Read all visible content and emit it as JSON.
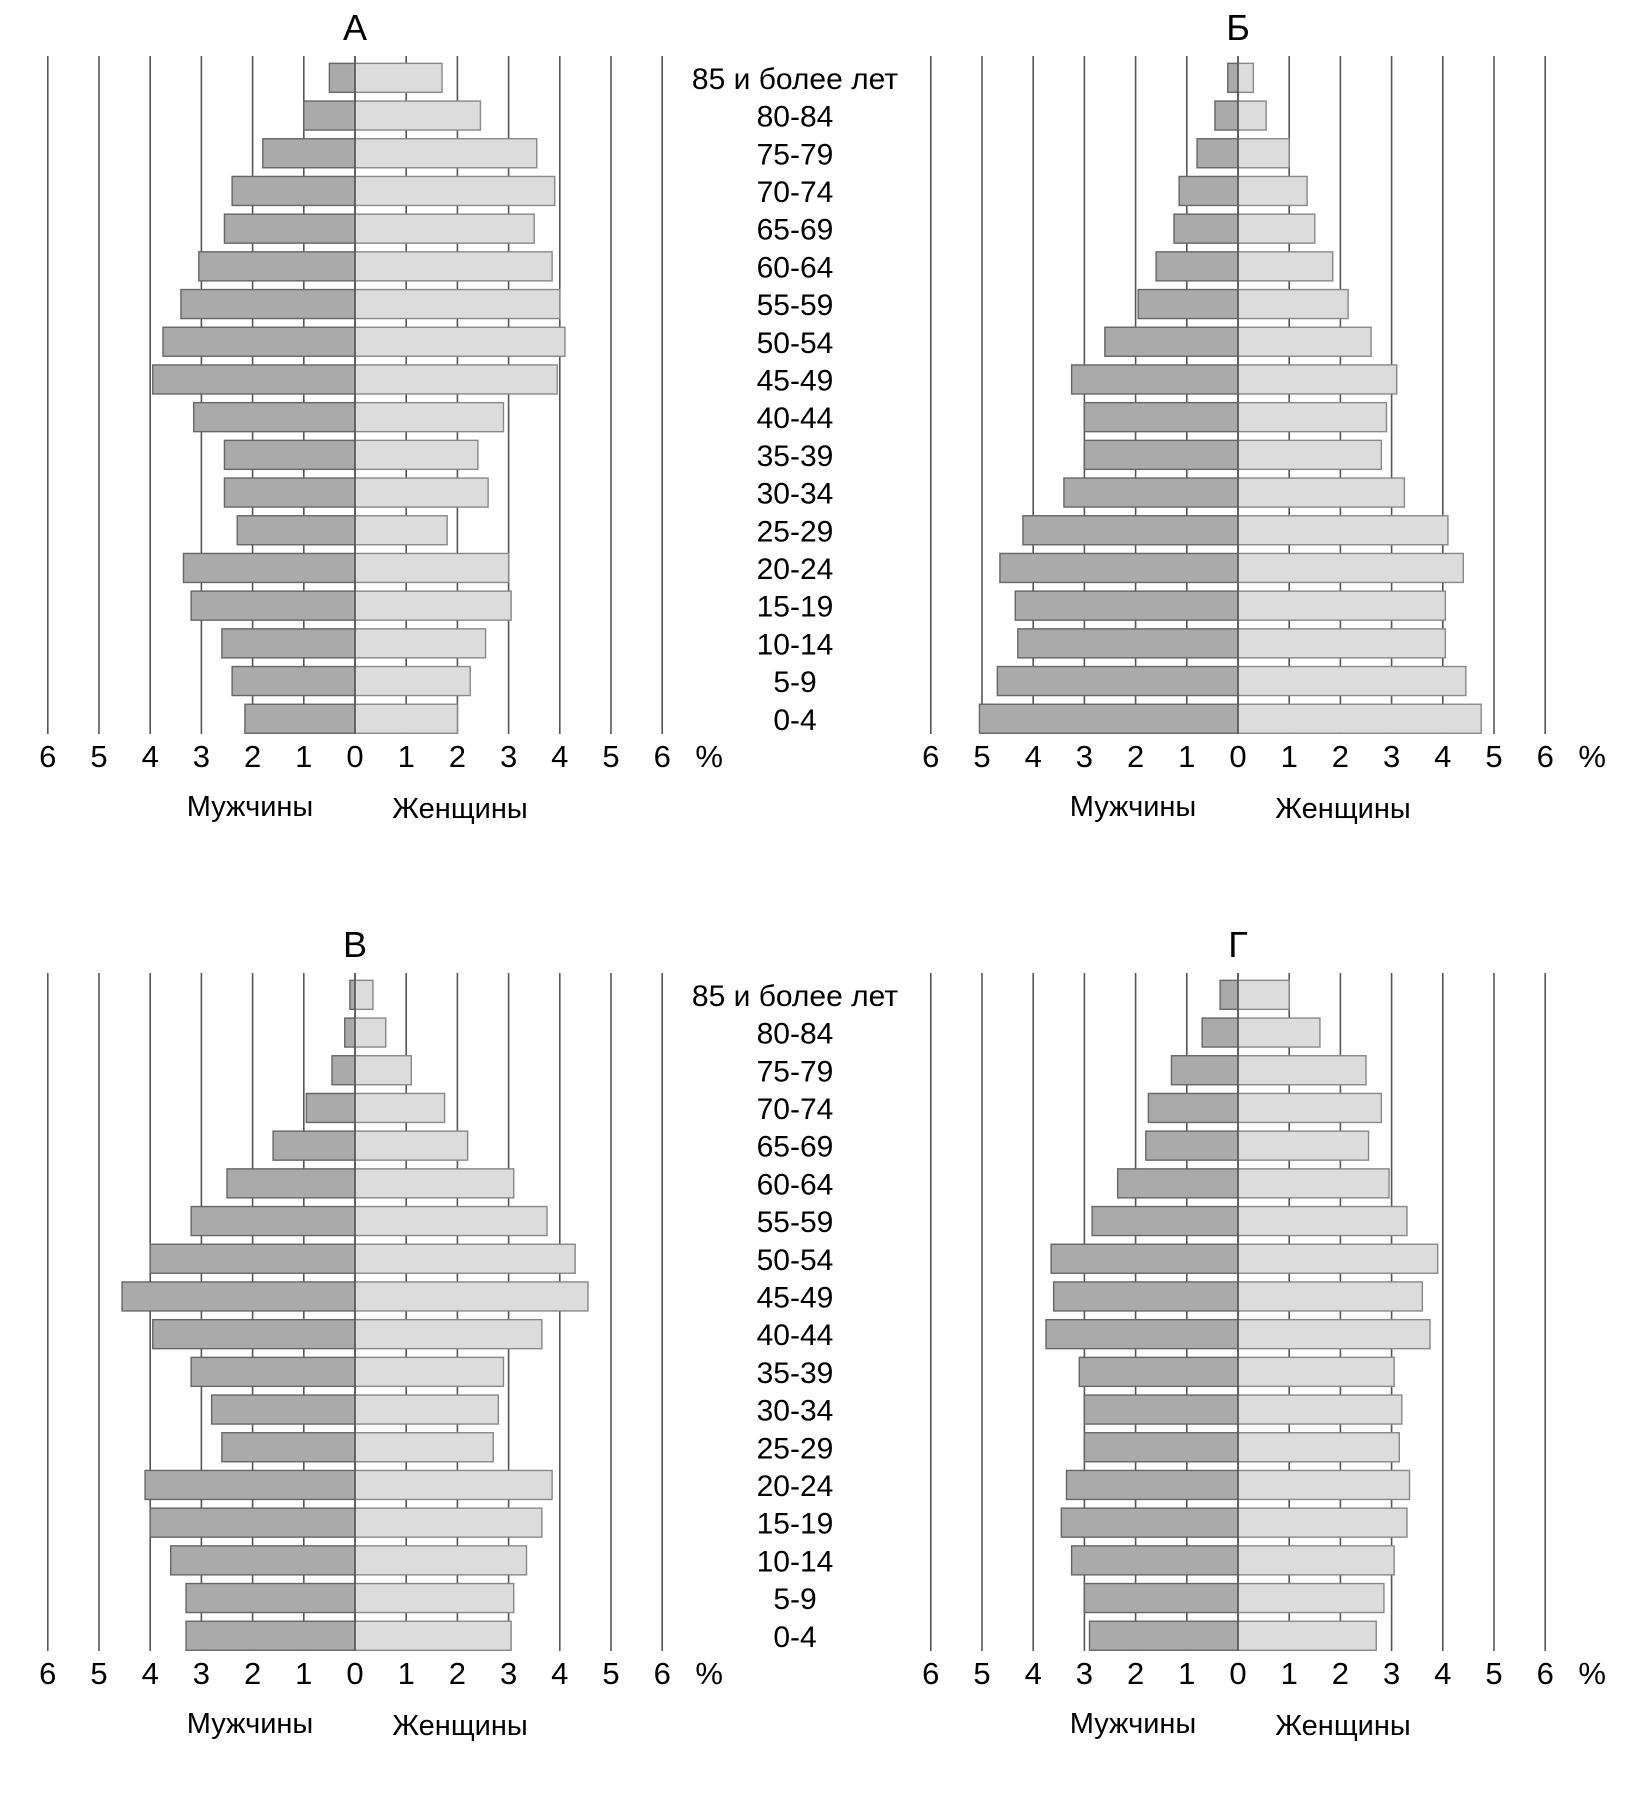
{
  "age_groups": [
    "85 и более лет",
    "80-84",
    "75-79",
    "70-74",
    "65-69",
    "60-64",
    "55-59",
    "50-54",
    "45-49",
    "40-44",
    "35-39",
    "30-34",
    "25-29",
    "20-24",
    "15-19",
    "10-14",
    "5-9",
    "0-4"
  ],
  "tick_labels": [
    "6",
    "5",
    "4",
    "3",
    "2",
    "1",
    "0",
    "1",
    "2",
    "3",
    "4",
    "5",
    "6"
  ],
  "unit_label": "%",
  "male_label": "Мужчины",
  "female_label": "Женщины",
  "colors": {
    "male": "#aaaaaa",
    "female": "#dcdcdc",
    "grid": "#555555"
  },
  "chart_data": [
    {
      "type": "bar",
      "title": "А",
      "categories": [
        "85 и более лет",
        "80-84",
        "75-79",
        "70-74",
        "65-69",
        "60-64",
        "55-59",
        "50-54",
        "45-49",
        "40-44",
        "35-39",
        "30-34",
        "25-29",
        "20-24",
        "15-19",
        "10-14",
        "5-9",
        "0-4"
      ],
      "xlim": [
        -6,
        6
      ],
      "series": [
        {
          "name": "Мужчины",
          "values": [
            0.5,
            1.0,
            1.8,
            2.4,
            2.55,
            3.05,
            3.4,
            3.75,
            3.95,
            3.15,
            2.55,
            2.55,
            2.3,
            3.35,
            3.2,
            2.6,
            2.4,
            2.15
          ]
        },
        {
          "name": "Женщины",
          "values": [
            1.7,
            2.45,
            3.55,
            3.9,
            3.5,
            3.85,
            4.0,
            4.1,
            3.95,
            2.9,
            2.4,
            2.6,
            1.8,
            3.0,
            3.05,
            2.55,
            2.25,
            2.0
          ]
        }
      ]
    },
    {
      "type": "bar",
      "title": "Б",
      "categories": [
        "85 и более лет",
        "80-84",
        "75-79",
        "70-74",
        "65-69",
        "60-64",
        "55-59",
        "50-54",
        "45-49",
        "40-44",
        "35-39",
        "30-34",
        "25-29",
        "20-24",
        "15-19",
        "10-14",
        "5-9",
        "0-4"
      ],
      "xlim": [
        -6,
        6
      ],
      "series": [
        {
          "name": "Мужчины",
          "values": [
            0.2,
            0.45,
            0.8,
            1.15,
            1.25,
            1.6,
            1.95,
            2.6,
            3.25,
            3.0,
            3.0,
            3.4,
            4.2,
            4.65,
            4.35,
            4.3,
            4.7,
            5.05
          ]
        },
        {
          "name": "Женщины",
          "values": [
            0.3,
            0.55,
            1.0,
            1.35,
            1.5,
            1.85,
            2.15,
            2.6,
            3.1,
            2.9,
            2.8,
            3.25,
            4.1,
            4.4,
            4.05,
            4.05,
            4.45,
            4.75
          ]
        }
      ]
    },
    {
      "type": "bar",
      "title": "В",
      "categories": [
        "85 и более лет",
        "80-84",
        "75-79",
        "70-74",
        "65-69",
        "60-64",
        "55-59",
        "50-54",
        "45-49",
        "40-44",
        "35-39",
        "30-34",
        "25-29",
        "20-24",
        "15-19",
        "10-14",
        "5-9",
        "0-4"
      ],
      "xlim": [
        -6,
        6
      ],
      "series": [
        {
          "name": "Мужчины",
          "values": [
            0.1,
            0.2,
            0.45,
            0.95,
            1.6,
            2.5,
            3.2,
            4.0,
            4.55,
            3.95,
            3.2,
            2.8,
            2.6,
            4.1,
            4.0,
            3.6,
            3.3,
            3.3
          ]
        },
        {
          "name": "Женщины",
          "values": [
            0.35,
            0.6,
            1.1,
            1.75,
            2.2,
            3.1,
            3.75,
            4.3,
            4.55,
            3.65,
            2.9,
            2.8,
            2.7,
            3.85,
            3.65,
            3.35,
            3.1,
            3.05
          ]
        }
      ]
    },
    {
      "type": "bar",
      "title": "Г",
      "categories": [
        "85 и более лет",
        "80-84",
        "75-79",
        "70-74",
        "65-69",
        "60-64",
        "55-59",
        "50-54",
        "45-49",
        "40-44",
        "35-39",
        "30-34",
        "25-29",
        "20-24",
        "15-19",
        "10-14",
        "5-9",
        "0-4"
      ],
      "xlim": [
        -6,
        6
      ],
      "series": [
        {
          "name": "Мужчины",
          "values": [
            0.35,
            0.7,
            1.3,
            1.75,
            1.8,
            2.35,
            2.85,
            3.65,
            3.6,
            3.75,
            3.1,
            3.0,
            3.0,
            3.35,
            3.45,
            3.25,
            3.0,
            2.9
          ]
        },
        {
          "name": "Женщины",
          "values": [
            1.0,
            1.6,
            2.5,
            2.8,
            2.55,
            2.95,
            3.3,
            3.9,
            3.6,
            3.75,
            3.05,
            3.2,
            3.15,
            3.35,
            3.3,
            3.05,
            2.85,
            2.7
          ]
        }
      ]
    }
  ]
}
